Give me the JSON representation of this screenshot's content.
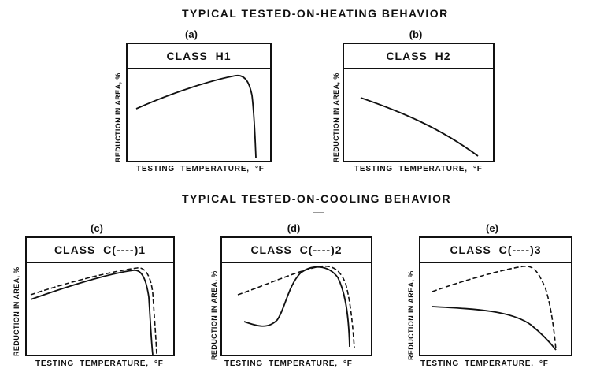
{
  "headings": {
    "heating": "TYPICAL   TESTED-ON-HEATING  BEHAVIOR",
    "cooling": "TYPICAL   TESTED-ON-COOLING  BEHAVIOR"
  },
  "axes": {
    "ylabel": "REDUCTION IN AREA, %",
    "xlabel": "TESTING  TEMPERATURE,  °F"
  },
  "panels": [
    {
      "label": "(a)",
      "class_name": "CLASS  H1"
    },
    {
      "label": "(b)",
      "class_name": "CLASS  H2"
    },
    {
      "label": "(c)",
      "class_name": "CLASS  C(----)1"
    },
    {
      "label": "(d)",
      "class_name": "CLASS  C(----)2"
    },
    {
      "label": "(e)",
      "class_name": "CLASS  C(----)3"
    }
  ]
}
